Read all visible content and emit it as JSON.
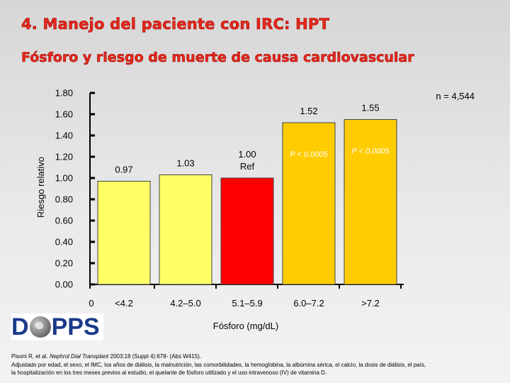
{
  "slide": {
    "title": "4. Manejo del paciente con IRC: HPT",
    "subtitle": "Fósforo y riesgo de muerte de causa cardiovascular"
  },
  "chart_data": {
    "type": "bar",
    "categories": [
      "<4.2",
      "4.2–5.0",
      "5.1–5.9",
      "6.0–7.2",
      ">7.2"
    ],
    "values": [
      0.97,
      1.03,
      1.0,
      1.52,
      1.55
    ],
    "value_labels": [
      "0.97",
      "1.03",
      "1.00\nRef",
      "1.52",
      "1.55"
    ],
    "p_values": [
      "",
      "",
      "",
      "P < 0.0005",
      "P < 0.0005"
    ],
    "bar_colors": [
      "#ffff66",
      "#ffff66",
      "#ff0000",
      "#ffcc00",
      "#ffcc00"
    ],
    "xlabel": "Fósforo (mg/dL)",
    "ylabel": "Riesgo relativo",
    "ylim": [
      0,
      1.8
    ],
    "yticks": [
      "0.00",
      "0.20",
      "0.40",
      "0.60",
      "0.80",
      "1.00",
      "1.20",
      "1.40",
      "1.60",
      "1.80"
    ],
    "x_origin_label": "0",
    "annotation": "n = 4,544",
    "grid": false,
    "legend": "none"
  },
  "logo": {
    "first": "D",
    "second": "PPS"
  },
  "footnote": {
    "authors": "Pisoni R, et al. ",
    "journal": "Nephrol Dial Transplant",
    "ref": " 2003;18 (Suppl 4):678- (Abs W415).",
    "line2": "Adjustado por edad, el sexo, el IMC, los años de diálisis, la malnutrición, las comorbilidades, la hemoglobina, la albúmina sérica, el calcio, la dosis de diálisis, el país,",
    "line3": "la hospitalización en los tres meses previos al estudio, el quelante de fósforo utilizado y el uso intravenoso (IV) de vitamina D."
  }
}
